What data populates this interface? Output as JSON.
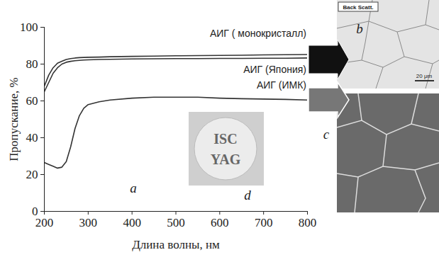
{
  "chart_data": {
    "type": "line",
    "x_label": "Длина волны, нм",
    "y_label": "Пропускание, %",
    "xlim": [
      200,
      800
    ],
    "ylim": [
      0,
      100
    ],
    "xticks": [
      200,
      300,
      400,
      500,
      600,
      700,
      800
    ],
    "yticks": [
      0,
      20,
      40,
      60,
      80,
      100
    ],
    "grid": false,
    "x": [
      200,
      210,
      220,
      230,
      240,
      250,
      260,
      270,
      280,
      290,
      300,
      325,
      350,
      400,
      450,
      500,
      550,
      600,
      650,
      700,
      750,
      800
    ],
    "series": [
      {
        "name": "АИГ ( монокристалл)",
        "color": "#333333",
        "values": [
          68,
          74,
          78,
          80.5,
          81.5,
          82.5,
          83,
          83.3,
          83.5,
          83.6,
          83.7,
          83.8,
          84,
          84.2,
          84.3,
          84.5,
          84.6,
          84.7,
          84.8,
          85,
          85.1,
          85.2
        ]
      },
      {
        "name": "АИГ (Япония)",
        "color": "#333333",
        "values": [
          65,
          70,
          75,
          78,
          80,
          81,
          81.5,
          81.8,
          82,
          82.2,
          82.3,
          82.5,
          82.6,
          82.8,
          82.9,
          83,
          83,
          83.1,
          83.1,
          83.2,
          83.2,
          83.3
        ]
      },
      {
        "name": "АИГ (ИМК)",
        "color": "#333333",
        "values": [
          26.5,
          25.5,
          24.5,
          23.5,
          24,
          27,
          35,
          45,
          52,
          56,
          58,
          59.5,
          60.5,
          61.5,
          62,
          62,
          62,
          61.5,
          61.2,
          61,
          60.8,
          60.5
        ]
      }
    ],
    "annotations": [
      "a",
      "b",
      "c",
      "d",
      "ISC",
      "YAG",
      "Back Scatt.",
      "20 μm"
    ]
  }
}
